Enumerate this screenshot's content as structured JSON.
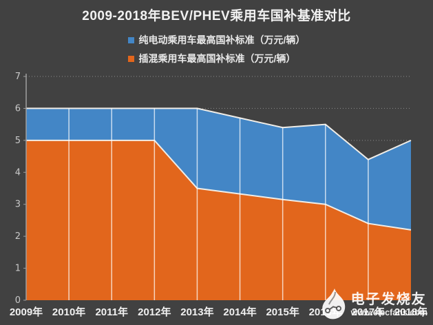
{
  "title": "2009-2018年BEV/PHEV乘用车国补基准对比",
  "legend": [
    {
      "label": "纯电动乘用车最高国补标准（万元/辆）",
      "color": "#4386c6"
    },
    {
      "label": "插混乘用车最高国补标准（万元/辆）",
      "color": "#e2661c"
    }
  ],
  "watermark": {
    "brand": "电子发烧友",
    "url": "www.elecfans.com"
  },
  "colors": {
    "background": "#414141",
    "bev_blue": "#4386c6",
    "phev_orange": "#e2661c",
    "area_edge": "#f0ede7",
    "axis": "#9f9f9f",
    "title_text": "#f2f2f2"
  },
  "chart_data": {
    "type": "area",
    "title": "2009-2018年BEV/PHEV乘用车国补基准对比",
    "categories": [
      "2009年",
      "2010年",
      "2011年",
      "2012年",
      "2013年",
      "2014年",
      "2015年",
      "2016年",
      "2017年",
      "2018年"
    ],
    "series": [
      {
        "name": "纯电动乘用车最高国补标准（万元/辆）",
        "color": "#4386c6",
        "values": [
          6,
          6,
          6,
          6,
          6,
          5.7,
          5.4,
          5.5,
          4.4,
          5
        ]
      },
      {
        "name": "插混乘用车最高国补标准（万元/辆）",
        "color": "#e2661c",
        "values": [
          5,
          5,
          5,
          5,
          3.5,
          3.325,
          3.15,
          3,
          2.4,
          2.2
        ]
      }
    ],
    "xlabel": "",
    "ylabel": "",
    "ylim": [
      0,
      7
    ],
    "yticks": [
      0,
      1,
      2,
      3,
      4,
      5,
      6,
      7
    ],
    "grid": "horizontal dashed gridlines; white vertical year lines inside areas",
    "legend_position": "top",
    "edge_color": "#f0ede7",
    "grid_color": "#8d8d8d",
    "vline_color": "rgba(255,255,255,0.72)"
  }
}
